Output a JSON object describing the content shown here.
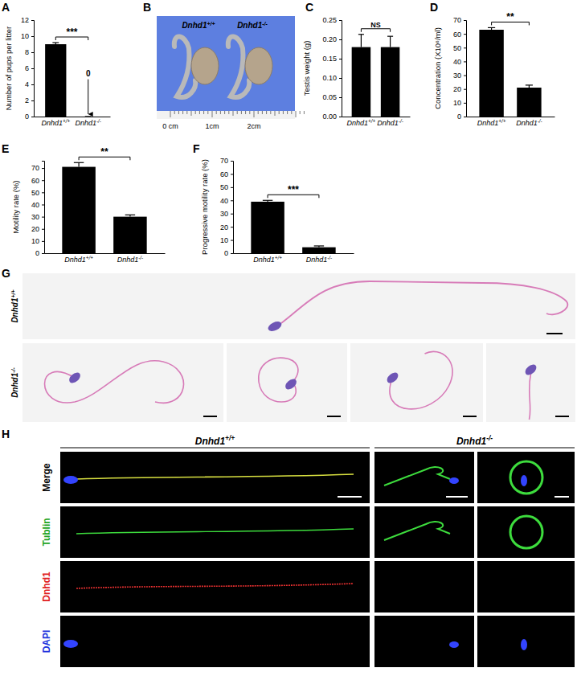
{
  "chart_data": [
    {
      "panel": "A",
      "type": "bar",
      "ylabel": "Number of pups per litter",
      "categories": [
        "Dnhd1+/+",
        "Dnhd1-/-"
      ],
      "values": [
        9.0,
        0
      ],
      "errors": [
        0.2,
        0
      ],
      "color": "#000000",
      "ylim": [
        0,
        12
      ],
      "yticks": [
        0,
        2,
        4,
        6,
        8,
        10,
        12
      ],
      "significance": "***",
      "annotation": {
        "text": "0",
        "category": "Dnhd1-/-"
      }
    },
    {
      "panel": "C",
      "type": "bar",
      "ylabel": "Testis weight (g)",
      "categories": [
        "Dnhd1+/+",
        "Dnhd1-/-"
      ],
      "values": [
        0.18,
        0.18
      ],
      "errors": [
        0.033,
        0.028
      ],
      "color": "#000000",
      "ylim": [
        0,
        0.25
      ],
      "yticks": [
        {
          "value": 0,
          "label": "0.00"
        },
        0.05,
        {
          "value": 0.1,
          "label": "0.10"
        },
        0.15,
        {
          "value": 0.2,
          "label": "0.20"
        },
        0.25
      ],
      "significance": "NS"
    },
    {
      "panel": "D",
      "type": "bar",
      "ylabel": "Concentration (X10⁶/ml)",
      "categories": [
        "Dnhd1+/+",
        "Dnhd1-/-"
      ],
      "values": [
        63,
        21
      ],
      "errors": [
        1.5,
        1.8
      ],
      "color": "#000000",
      "ylim": [
        0,
        70
      ],
      "yticks": [
        0,
        10,
        20,
        30,
        40,
        50,
        60,
        70
      ],
      "significance": "**"
    },
    {
      "panel": "E",
      "type": "bar",
      "ylabel": "Motility rate (%)",
      "categories": [
        "Dnhd1+/+",
        "Dnhd1-/-"
      ],
      "values": [
        71,
        30
      ],
      "errors": [
        3.5,
        1.5
      ],
      "color": "#000000",
      "ylim": [
        0,
        76
      ],
      "yticks": [
        0,
        10,
        20,
        30,
        40,
        50,
        60,
        70
      ],
      "significance": "**"
    },
    {
      "panel": "F",
      "type": "bar",
      "ylabel": "Progressive motility rate (%)",
      "categories": [
        "Dnhd1+/+",
        "Dnhd1-/-"
      ],
      "values": [
        39,
        4.5
      ],
      "errors": [
        1,
        1
      ],
      "color": "#000000",
      "ylim": [
        0,
        70
      ],
      "yticks": [
        0,
        10,
        20,
        30,
        40,
        50,
        60,
        70
      ],
      "significance": "***"
    }
  ],
  "photo": {
    "panel": "B",
    "labels": [
      "Dnhd1+/+",
      "Dnhd1-/-"
    ],
    "ruler": [
      "0 cm",
      "1cm",
      "2cm"
    ]
  },
  "brightfield": {
    "panel": "G",
    "rows": [
      "Dnhd1+/+",
      "Dnhd1-/-"
    ]
  },
  "immunofluorescence": {
    "panel": "H",
    "columns": [
      "Dnhd1+/+",
      "Dnhd1-/-"
    ],
    "rows": [
      "Merge",
      "Tublin",
      "Dnhd1",
      "DAPI"
    ],
    "colors": [
      "#000000",
      "#22a422",
      "#e02020",
      "#2233dd"
    ]
  }
}
